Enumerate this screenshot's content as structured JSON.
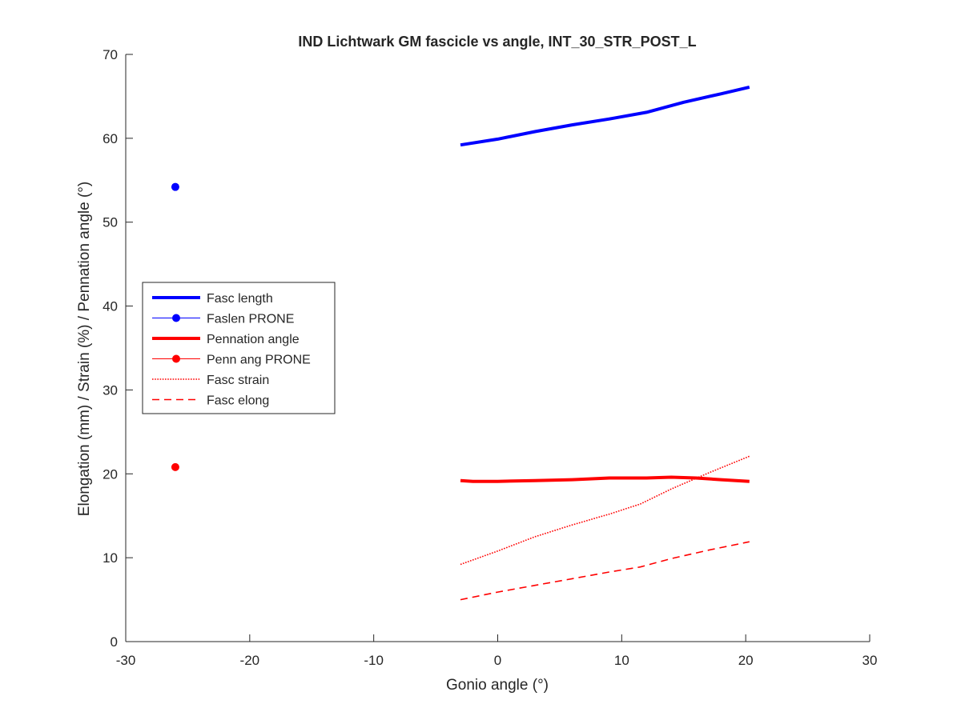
{
  "chart_data": {
    "type": "line",
    "title": "IND Lichtwark GM fascicle vs angle, INT_30_STR_POST_L",
    "xlabel": "Gonio angle (°)",
    "ylabel": "Elongation (mm) / Strain (%) / Pennation angle (°)",
    "xlim": [
      -30,
      30
    ],
    "ylim": [
      0,
      70
    ],
    "xticks": [
      -30,
      -20,
      -10,
      0,
      10,
      20,
      30
    ],
    "yticks": [
      0,
      10,
      20,
      30,
      40,
      50,
      60,
      70
    ],
    "xtick_labels": [
      "-30",
      "-20",
      "-10",
      "0",
      "10",
      "20",
      "30"
    ],
    "ytick_labels": [
      "0",
      "10",
      "20",
      "30",
      "40",
      "50",
      "60",
      "70"
    ],
    "grid": false,
    "legend_position": "middle-left",
    "series": [
      {
        "name": "Fasc length",
        "style": "solid-thick",
        "color": "#0000ff",
        "x": [
          -3,
          0,
          3,
          6,
          9,
          12,
          15,
          18,
          20.3
        ],
        "y": [
          59.2,
          59.9,
          60.8,
          61.6,
          62.3,
          63.1,
          64.3,
          65.3,
          66.1
        ]
      },
      {
        "name": "Faslen PRONE",
        "style": "marker",
        "color": "#0000ff",
        "x": [
          -26
        ],
        "y": [
          54.2
        ]
      },
      {
        "name": "Pennation angle",
        "style": "solid-thick",
        "color": "#ff0000",
        "x": [
          -3,
          -2,
          0,
          3,
          6,
          9,
          12,
          14,
          16,
          18,
          20.3
        ],
        "y": [
          19.2,
          19.1,
          19.1,
          19.2,
          19.3,
          19.5,
          19.5,
          19.6,
          19.5,
          19.3,
          19.1
        ]
      },
      {
        "name": "Penn ang PRONE",
        "style": "marker",
        "color": "#ff0000",
        "x": [
          -26
        ],
        "y": [
          20.8
        ]
      },
      {
        "name": "Fasc strain",
        "style": "dotted",
        "color": "#ff0000",
        "x": [
          -3,
          0,
          3,
          6,
          9,
          11.5,
          14,
          17,
          20.3
        ],
        "y": [
          9.2,
          10.8,
          12.5,
          13.9,
          15.2,
          16.4,
          18.2,
          20.1,
          22.1
        ]
      },
      {
        "name": "Fasc elong",
        "style": "dashed",
        "color": "#ff0000",
        "x": [
          -3,
          0,
          3,
          6,
          9,
          11.5,
          14,
          17,
          20.3
        ],
        "y": [
          5.0,
          5.9,
          6.7,
          7.5,
          8.3,
          8.9,
          9.9,
          10.9,
          11.9
        ]
      }
    ]
  }
}
